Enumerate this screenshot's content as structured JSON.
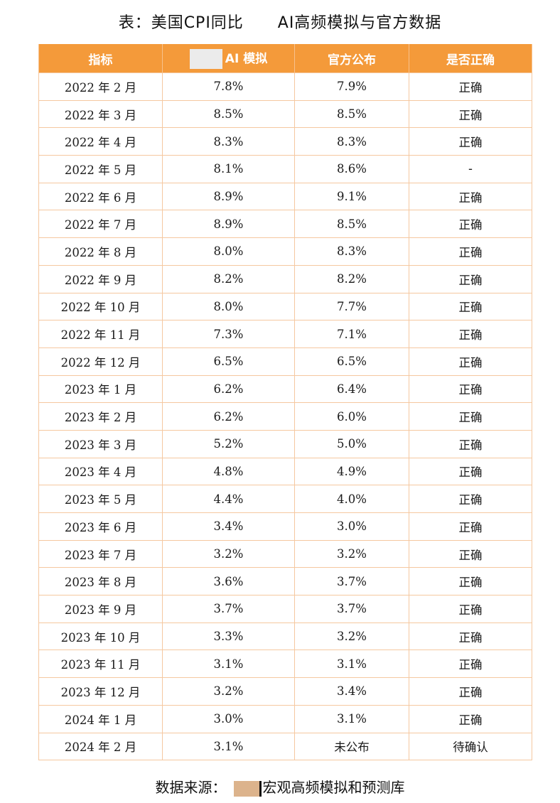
{
  "title": "表：美国CPI同比      AI高频模拟与官方数据",
  "table": {
    "headers": [
      "指标",
      "AI 模拟",
      "官方公布",
      "是否正确"
    ],
    "rows": [
      [
        "2022 年 2 月",
        "7.8%",
        "7.9%",
        "正确"
      ],
      [
        "2022 年 3 月",
        "8.5%",
        "8.5%",
        "正确"
      ],
      [
        "2022 年 4 月",
        "8.3%",
        "8.3%",
        "正确"
      ],
      [
        "2022 年 5 月",
        "8.1%",
        "8.6%",
        "-"
      ],
      [
        "2022 年 6 月",
        "8.9%",
        "9.1%",
        "正确"
      ],
      [
        "2022 年 7 月",
        "8.9%",
        "8.5%",
        "正确"
      ],
      [
        "2022 年 8 月",
        "8.0%",
        "8.3%",
        "正确"
      ],
      [
        "2022 年 9 月",
        "8.2%",
        "8.2%",
        "正确"
      ],
      [
        "2022 年 10 月",
        "8.0%",
        "7.7%",
        "正确"
      ],
      [
        "2022 年 11 月",
        "7.3%",
        "7.1%",
        "正确"
      ],
      [
        "2022 年 12 月",
        "6.5%",
        "6.5%",
        "正确"
      ],
      [
        "2023 年 1 月",
        "6.2%",
        "6.4%",
        "正确"
      ],
      [
        "2023 年 2 月",
        "6.2%",
        "6.0%",
        "正确"
      ],
      [
        "2023 年 3 月",
        "5.2%",
        "5.0%",
        "正确"
      ],
      [
        "2023 年 4 月",
        "4.8%",
        "4.9%",
        "正确"
      ],
      [
        "2023 年 5 月",
        "4.4%",
        "4.0%",
        "正确"
      ],
      [
        "2023 年 6 月",
        "3.4%",
        "3.0%",
        "正确"
      ],
      [
        "2023 年 7 月",
        "3.2%",
        "3.2%",
        "正确"
      ],
      [
        "2023 年 8 月",
        "3.6%",
        "3.7%",
        "正确"
      ],
      [
        "2023 年 9 月",
        "3.7%",
        "3.7%",
        "正确"
      ],
      [
        "2023 年 10 月",
        "3.3%",
        "3.2%",
        "正确"
      ],
      [
        "2023 年 11 月",
        "3.1%",
        "3.1%",
        "正确"
      ],
      [
        "2023 年 12 月",
        "3.2%",
        "3.4%",
        "正确"
      ],
      [
        "2024 年 1 月",
        "3.0%",
        "3.1%",
        "正确"
      ],
      [
        "2024 年 2 月",
        "3.1%",
        "未公布",
        "待确认"
      ]
    ]
  },
  "source": {
    "label": "数据来源：",
    "text": "宏观高频模拟和预测库"
  },
  "colors": {
    "header_bg": "#f49a3a",
    "border": "#f5c8a0",
    "redaction": "#dcb38c"
  }
}
